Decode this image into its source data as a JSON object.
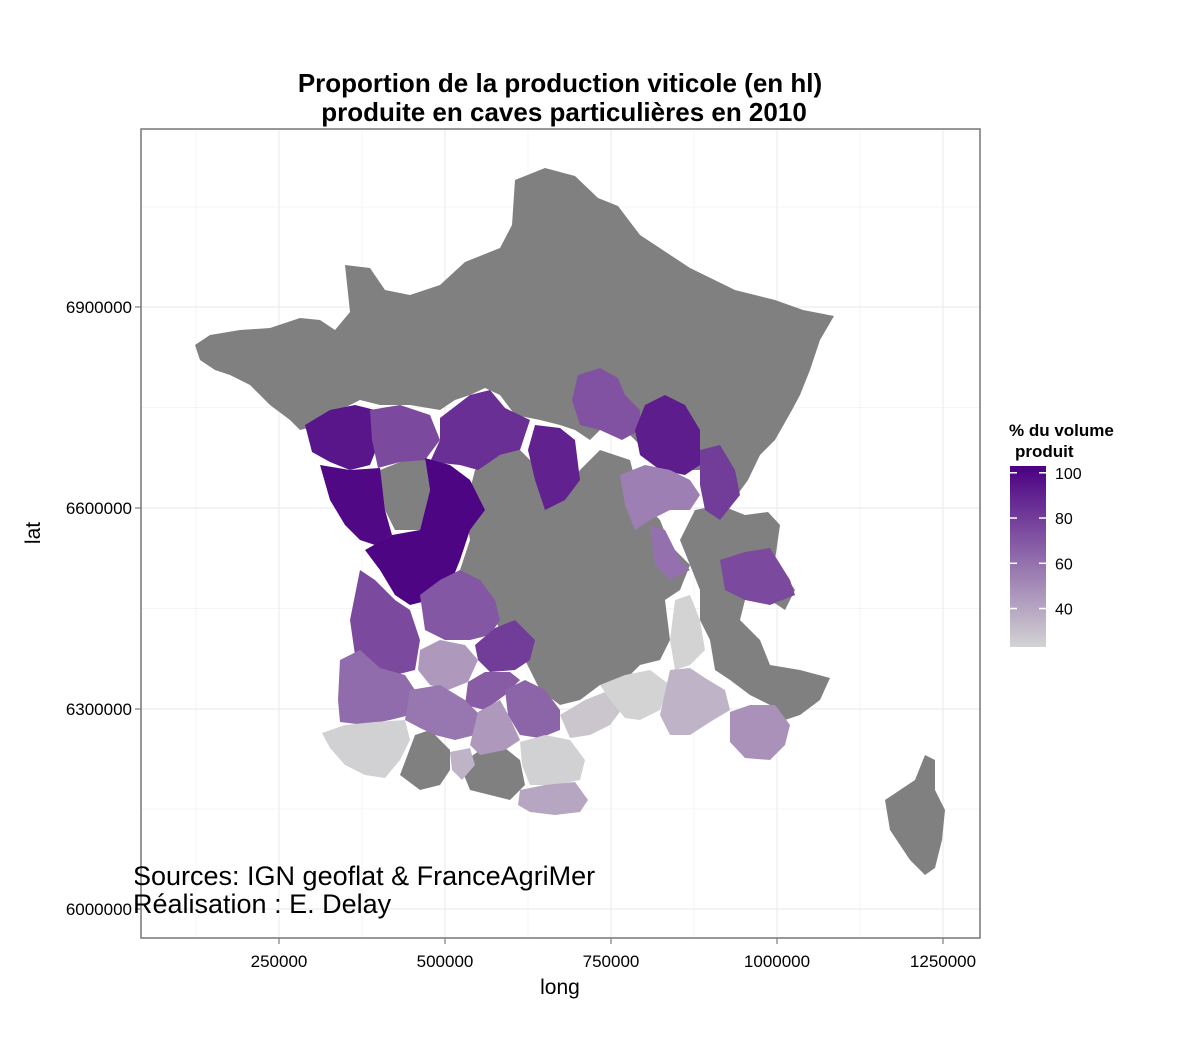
{
  "title_line1": "Proportion de la production viticole (en hl)",
  "title_line2": "produite en caves particulières en 2010",
  "x_axis_label": "long",
  "y_axis_label": "lat",
  "x_ticks": [
    {
      "value": 250000,
      "label": "250000"
    },
    {
      "value": 500000,
      "label": "500000"
    },
    {
      "value": 750000,
      "label": "750000"
    },
    {
      "value": 1000000,
      "label": "1000000"
    },
    {
      "value": 1250000,
      "label": "1250000"
    }
  ],
  "y_ticks": [
    {
      "value": 6000000,
      "label": "6000000"
    },
    {
      "value": 6300000,
      "label": "6300000"
    },
    {
      "value": 6600000,
      "label": "6600000"
    },
    {
      "value": 6900000,
      "label": "6900000"
    }
  ],
  "legend": {
    "title_line1": "% du volume",
    "title_line2": "produit",
    "min": 23,
    "max": 103,
    "ticks": [
      {
        "value": 40,
        "label": "40"
      },
      {
        "value": 60,
        "label": "60"
      },
      {
        "value": 80,
        "label": "80"
      },
      {
        "value": 100,
        "label": "100"
      }
    ],
    "color_low": "#d3d3d3",
    "color_high": "#4b0082"
  },
  "no_data_color": "#808080",
  "caption_line1": "Sources: IGN geoflat & FranceAgriMer",
  "caption_line2": "Réalisation : E. Delay",
  "colors": {
    "panel_background": "#ffffff",
    "grid_major": "#ececec",
    "grid_minor": "#f5f5f5",
    "panel_border": "#7f7f7f"
  }
}
